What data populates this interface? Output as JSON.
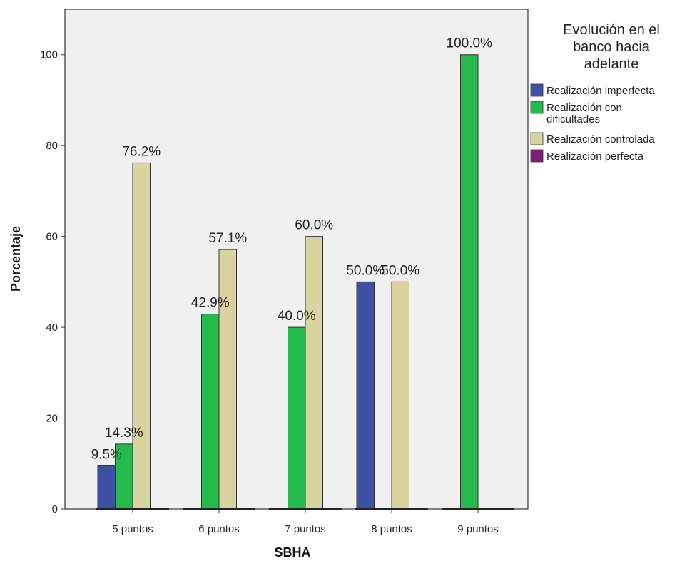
{
  "chart_data": {
    "type": "bar",
    "title": "",
    "xlabel": "SBHA",
    "ylabel": "Porcentaje",
    "ylim": [
      0,
      110
    ],
    "yticks": [
      0,
      20,
      40,
      60,
      80,
      100
    ],
    "grid": false,
    "legend_position": "right",
    "legend_title": [
      "Evolución en el",
      "banco hacia",
      "adelante"
    ],
    "categories": [
      "5 puntos",
      "6 puntos",
      "7 puntos",
      "8 puntos",
      "9 puntos"
    ],
    "series": [
      {
        "name": "Realización imperfecta",
        "name_lines": [
          "Realización imperfecta"
        ],
        "color": "#3f51a5",
        "values": [
          9.5,
          0,
          0,
          50.0,
          0
        ],
        "labels": [
          "9.5%",
          "",
          "",
          "50.0%",
          ""
        ]
      },
      {
        "name": "Realización con dificultades",
        "name_lines": [
          "Realización con",
          "dificultades"
        ],
        "color": "#26b94b",
        "values": [
          14.3,
          42.9,
          40.0,
          0,
          100.0
        ],
        "labels": [
          "14.3%",
          "42.9%",
          "40.0%",
          "",
          "100.0%"
        ]
      },
      {
        "name": "Realización controlada",
        "name_lines": [
          "Realización controlada"
        ],
        "color": "#d9d3a0",
        "values": [
          76.2,
          57.1,
          60.0,
          50.0,
          0
        ],
        "labels": [
          "76.2%",
          "57.1%",
          "60.0%",
          "50.0%",
          ""
        ]
      },
      {
        "name": "Realización perfecta",
        "name_lines": [
          "Realización perfecta"
        ],
        "color": "#7b1f7a",
        "values": [
          0,
          0,
          0,
          0,
          0
        ],
        "labels": [
          "",
          "",
          "",
          "",
          ""
        ]
      }
    ]
  }
}
